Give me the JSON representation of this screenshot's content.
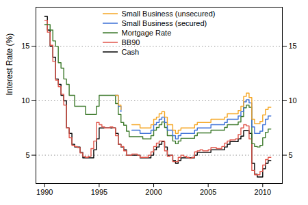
{
  "chart_data": {
    "type": "line",
    "y_label": "Interest Rate (%)",
    "x": [
      1990,
      1990.25,
      1990.5,
      1990.75,
      1991,
      1991.25,
      1991.5,
      1991.75,
      1992,
      1992.25,
      1992.5,
      1992.75,
      1993,
      1993.25,
      1993.5,
      1993.75,
      1994,
      1994.25,
      1994.5,
      1994.75,
      1995,
      1995.25,
      1995.5,
      1995.75,
      1996,
      1996.25,
      1996.5,
      1996.75,
      1997,
      1997.25,
      1997.5,
      1997.75,
      1998,
      1998.25,
      1998.5,
      1998.75,
      1999,
      1999.25,
      1999.5,
      1999.75,
      2000,
      2000.25,
      2000.5,
      2000.75,
      2001,
      2001.25,
      2001.5,
      2001.75,
      2002,
      2002.25,
      2002.5,
      2002.75,
      2003,
      2003.25,
      2003.5,
      2003.75,
      2004,
      2004.25,
      2004.5,
      2004.75,
      2005,
      2005.25,
      2005.5,
      2005.75,
      2006,
      2006.25,
      2006.5,
      2006.75,
      2007,
      2007.25,
      2007.5,
      2007.75,
      2008,
      2008.25,
      2008.5,
      2008.75,
      2009,
      2009.25,
      2009.5,
      2009.75,
      2010,
      2010.25,
      2010.5,
      2010.75
    ],
    "series": [
      {
        "name": "Small Business (unsecured)",
        "color": "#f5a623",
        "values": [
          null,
          null,
          null,
          null,
          null,
          null,
          null,
          null,
          null,
          null,
          null,
          null,
          null,
          null,
          null,
          null,
          null,
          null,
          null,
          null,
          null,
          null,
          null,
          null,
          null,
          null,
          10.5,
          9.6,
          9.2,
          null,
          null,
          null,
          7.8,
          7.8,
          7.8,
          7.5,
          7.5,
          7.5,
          7.5,
          7.8,
          8.3,
          8.5,
          8.8,
          9.0,
          8.5,
          7.8,
          7.8,
          7.3,
          7.0,
          7.3,
          7.5,
          7.5,
          7.5,
          7.5,
          7.5,
          7.8,
          8.0,
          8.0,
          8.0,
          8.0,
          8.0,
          8.3,
          8.3,
          8.3,
          8.3,
          8.3,
          8.5,
          8.8,
          8.8,
          8.8,
          8.8,
          9.1,
          9.5,
          10.4,
          10.7,
          10.3,
          8.3,
          7.9,
          7.9,
          8.1,
          8.7,
          9.2,
          9.4,
          9.4
        ]
      },
      {
        "name": "Small Business (secured)",
        "color": "#3b6fd6",
        "values": [
          null,
          null,
          null,
          null,
          null,
          null,
          null,
          null,
          null,
          null,
          null,
          null,
          null,
          null,
          null,
          null,
          null,
          null,
          null,
          null,
          null,
          null,
          null,
          null,
          null,
          null,
          10.5,
          9.5,
          9.0,
          null,
          null,
          null,
          7.3,
          7.3,
          7.3,
          7.0,
          7.0,
          7.0,
          7.0,
          7.3,
          7.8,
          8.0,
          8.3,
          8.5,
          8.0,
          7.3,
          7.3,
          6.8,
          6.5,
          6.8,
          7.0,
          7.0,
          7.0,
          7.0,
          7.0,
          7.3,
          7.5,
          7.5,
          7.5,
          7.5,
          7.5,
          7.8,
          7.8,
          7.8,
          7.8,
          7.8,
          8.0,
          8.3,
          8.3,
          8.3,
          8.3,
          8.6,
          9.0,
          9.9,
          10.1,
          9.8,
          7.6,
          7.0,
          7.0,
          7.2,
          7.8,
          8.3,
          8.6,
          8.6
        ]
      },
      {
        "name": "Mortgage Rate",
        "color": "#3d7a2c",
        "values": [
          17,
          17,
          16.5,
          15.5,
          15,
          13.5,
          13,
          12,
          11.5,
          10.5,
          10.5,
          9.5,
          9.5,
          9.5,
          9.5,
          8.75,
          8.75,
          8.75,
          8.75,
          9.5,
          10.5,
          10.5,
          10.5,
          10.5,
          10.5,
          10.5,
          9.75,
          8.75,
          8,
          7.75,
          7.2,
          6.7,
          6.7,
          6.7,
          6.7,
          6.7,
          6.5,
          6.5,
          6.5,
          6.8,
          7.3,
          7.55,
          7.8,
          8.05,
          7.55,
          6.8,
          6.8,
          6.3,
          6.05,
          6.3,
          6.55,
          6.55,
          6.55,
          6.55,
          6.55,
          6.8,
          7.05,
          7.05,
          7.05,
          7.05,
          7.05,
          7.3,
          7.3,
          7.3,
          7.3,
          7.3,
          7.55,
          7.8,
          7.8,
          7.8,
          7.8,
          8.05,
          8.55,
          9.35,
          9.6,
          9.4,
          6.05,
          5.8,
          5.75,
          5.9,
          6.6,
          7.1,
          7.4,
          7.4
        ]
      },
      {
        "name": "BB90",
        "color": "#e0554a",
        "values": [
          17.4,
          16.3,
          15.1,
          13.6,
          11.9,
          11.3,
          10.6,
          9.6,
          7.5,
          6.6,
          5.9,
          5.8,
          5.7,
          5.2,
          4.9,
          4.8,
          4.9,
          5.6,
          6.3,
          8.0,
          7.8,
          7.6,
          7.5,
          7.5,
          7.6,
          7.5,
          6.8,
          6.0,
          5.8,
          5.4,
          5.0,
          5.0,
          5.1,
          5.1,
          5.0,
          4.8,
          4.8,
          4.8,
          5.0,
          5.3,
          5.8,
          6.1,
          6.3,
          6.3,
          5.4,
          4.9,
          5.0,
          4.4,
          4.4,
          4.8,
          5.0,
          4.9,
          4.8,
          4.7,
          4.8,
          5.3,
          5.4,
          5.5,
          5.4,
          5.4,
          5.5,
          5.7,
          5.7,
          5.6,
          5.6,
          5.8,
          6.1,
          6.3,
          6.4,
          6.4,
          6.5,
          6.9,
          7.5,
          7.8,
          7.7,
          6.5,
          3.6,
          3.2,
          3.2,
          3.5,
          4.1,
          4.6,
          4.8,
          4.8
        ]
      },
      {
        "name": "Cash",
        "color": "#000000",
        "values": [
          17.75,
          16.5,
          15,
          14,
          12,
          11.5,
          10.5,
          10,
          7.5,
          7,
          6,
          5.75,
          5.75,
          5.25,
          4.75,
          4.75,
          4.75,
          4.75,
          5.5,
          6.5,
          7.5,
          7.5,
          7.5,
          7.5,
          7.5,
          7.5,
          7,
          6,
          5.75,
          5.5,
          5,
          5,
          5,
          5,
          5,
          4.75,
          4.75,
          4.75,
          4.75,
          5,
          5.5,
          5.75,
          6,
          6.25,
          5.75,
          5,
          5,
          4.5,
          4.25,
          4.5,
          4.75,
          4.75,
          4.75,
          4.75,
          4.75,
          5,
          5.25,
          5.25,
          5.25,
          5.25,
          5.25,
          5.5,
          5.5,
          5.5,
          5.5,
          5.5,
          5.75,
          6,
          6.25,
          6.25,
          6.25,
          6.5,
          6.75,
          7.25,
          7.25,
          7,
          4.25,
          3.25,
          3,
          3,
          3.75,
          4.25,
          4.5,
          4.5
        ]
      }
    ],
    "xlim": [
      1989.2,
      2011.8
    ],
    "xticks": [
      1990,
      1995,
      2000,
      2005,
      2010
    ],
    "ylim": [
      2.4,
      18.6
    ],
    "yticks": [
      5,
      10,
      15
    ],
    "grid": true,
    "legend": "top"
  }
}
